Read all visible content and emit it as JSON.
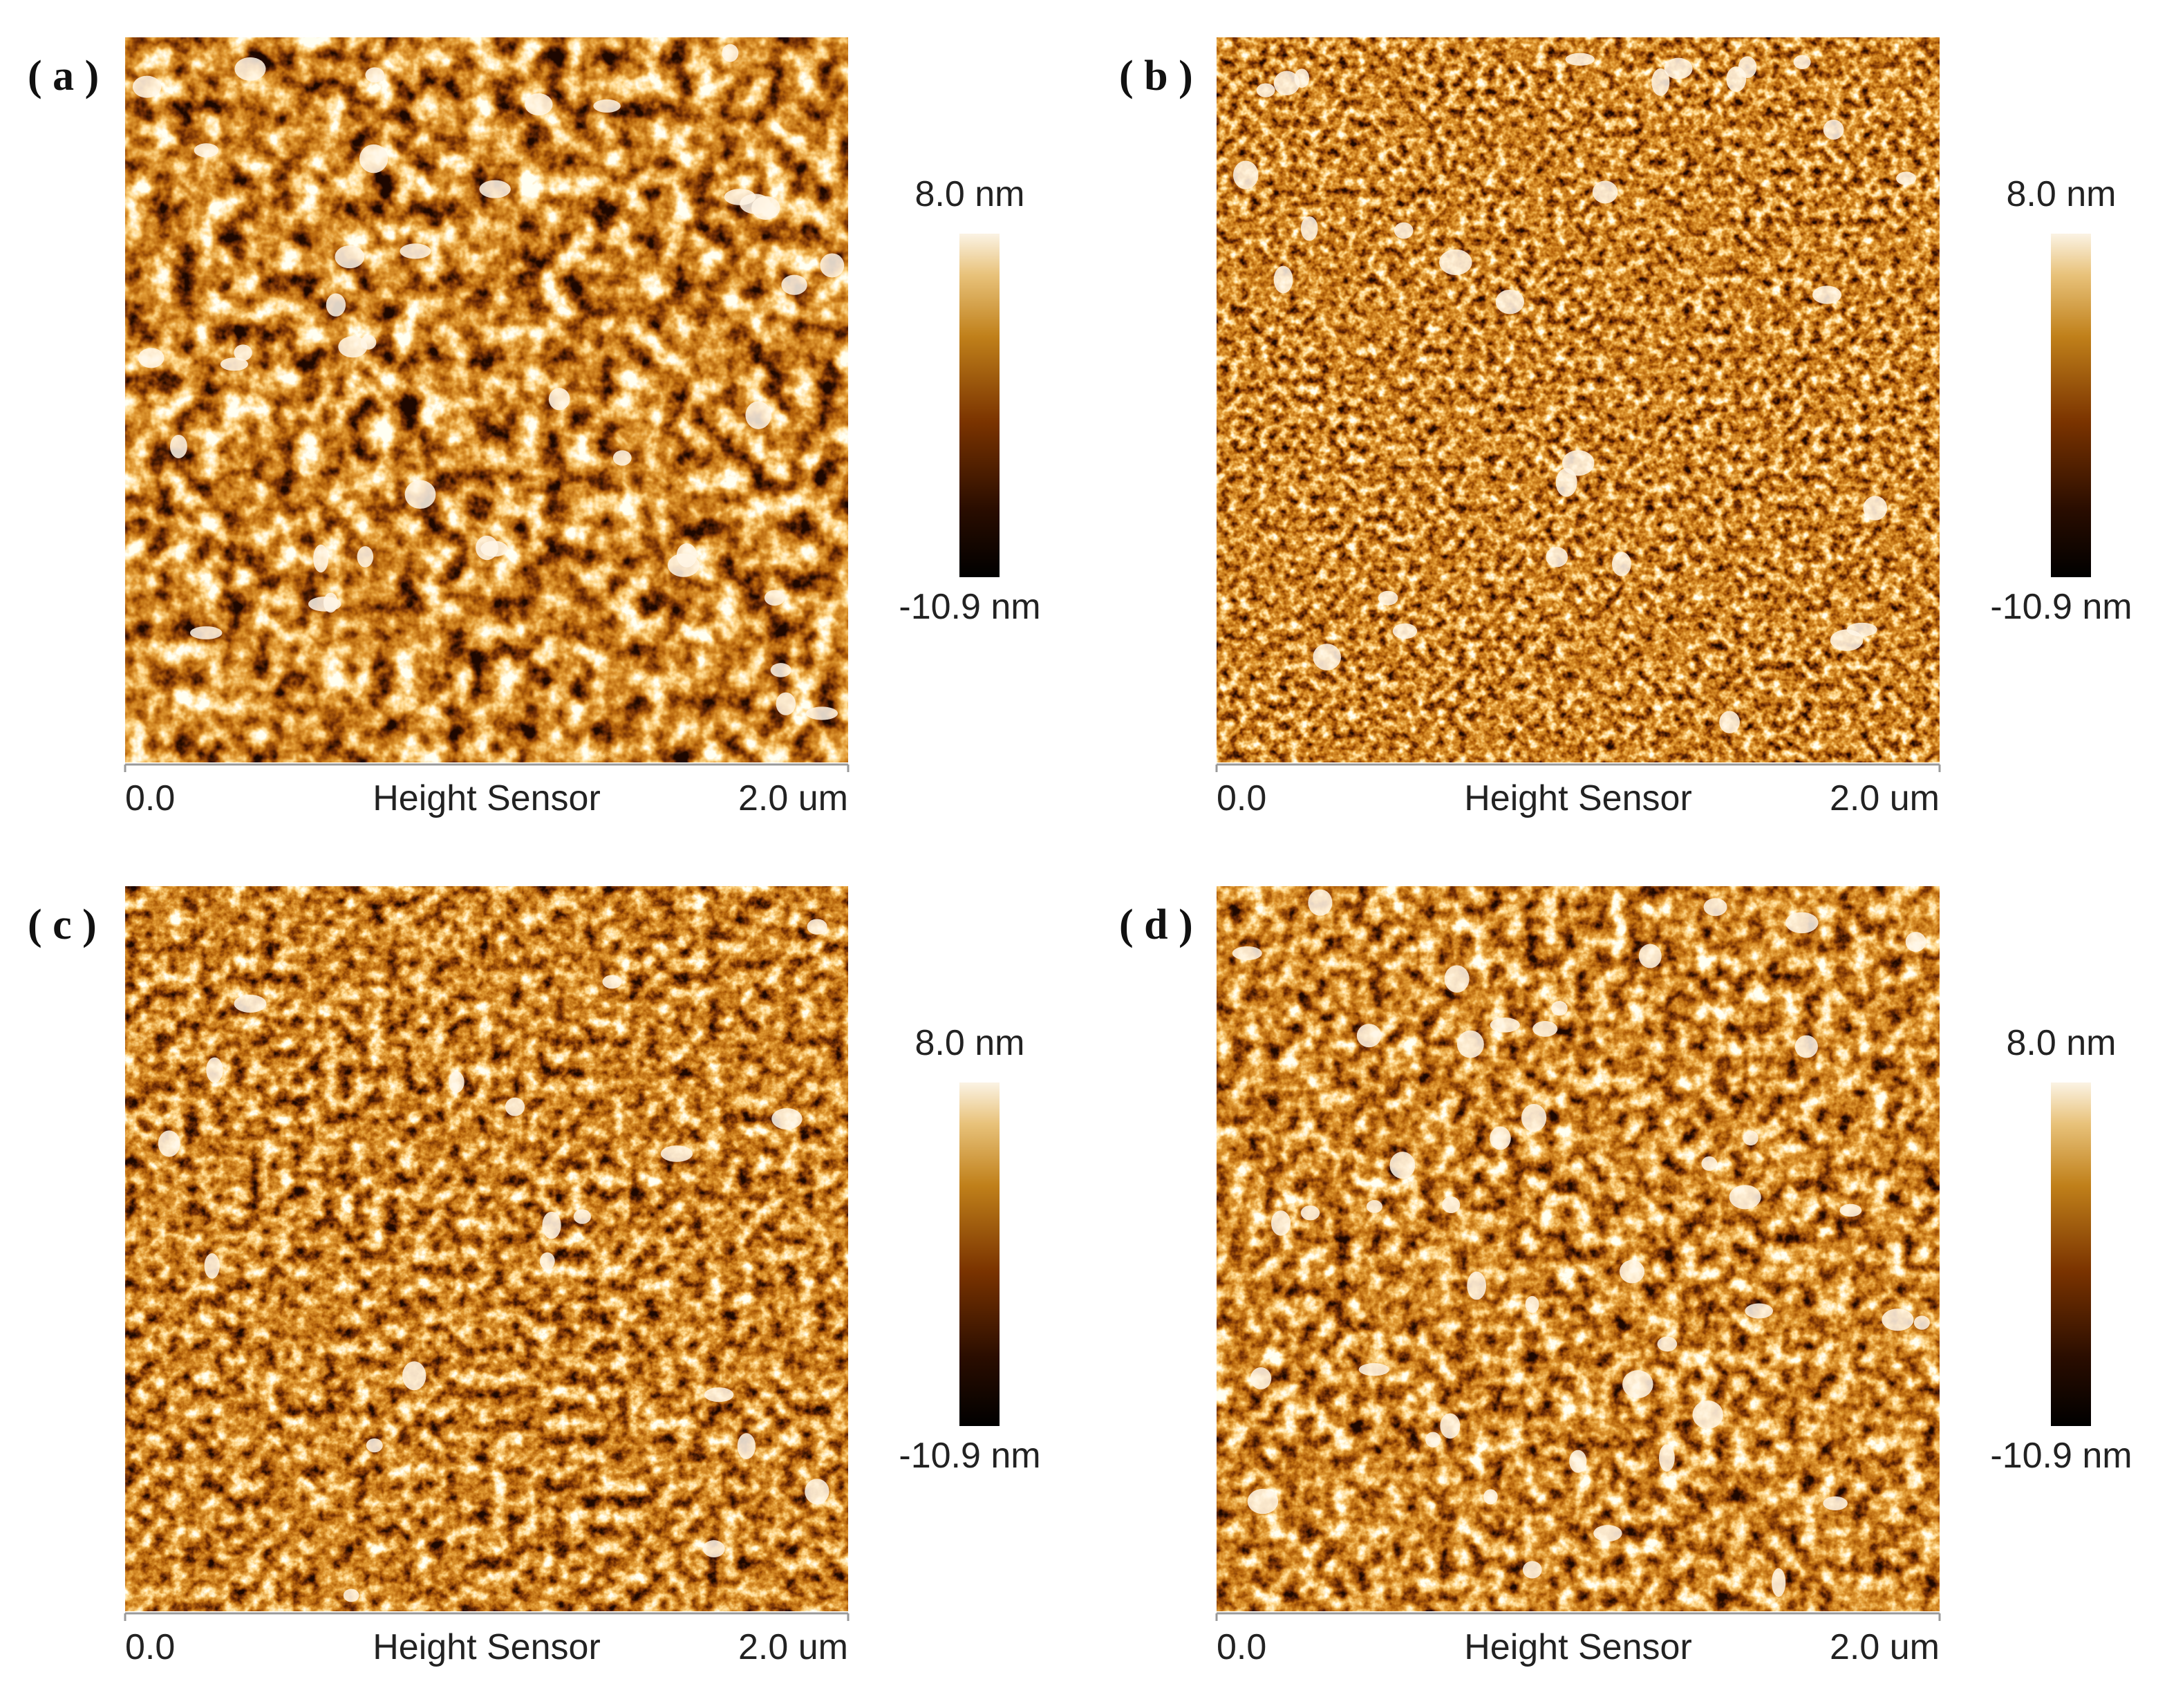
{
  "panels": [
    {
      "label": "( a )",
      "scale_max": "8.0 nm",
      "scale_min": "-10.9 nm",
      "x_start": "0.0",
      "x_label": "Height Sensor",
      "x_end": "2.0 um"
    },
    {
      "label": "( b )",
      "scale_max": "8.0 nm",
      "scale_min": "-10.9 nm",
      "x_start": "0.0",
      "x_label": "Height Sensor",
      "x_end": "2.0 um"
    },
    {
      "label": "( c )",
      "scale_max": "8.0 nm",
      "scale_min": "-10.9 nm",
      "x_start": "0.0",
      "x_label": "Height Sensor",
      "x_end": "2.0 um"
    },
    {
      "label": "( d )",
      "scale_max": "8.0 nm",
      "scale_min": "-10.9 nm",
      "x_start": "0.0",
      "x_label": "Height Sensor",
      "x_end": "2.0 um"
    }
  ]
}
